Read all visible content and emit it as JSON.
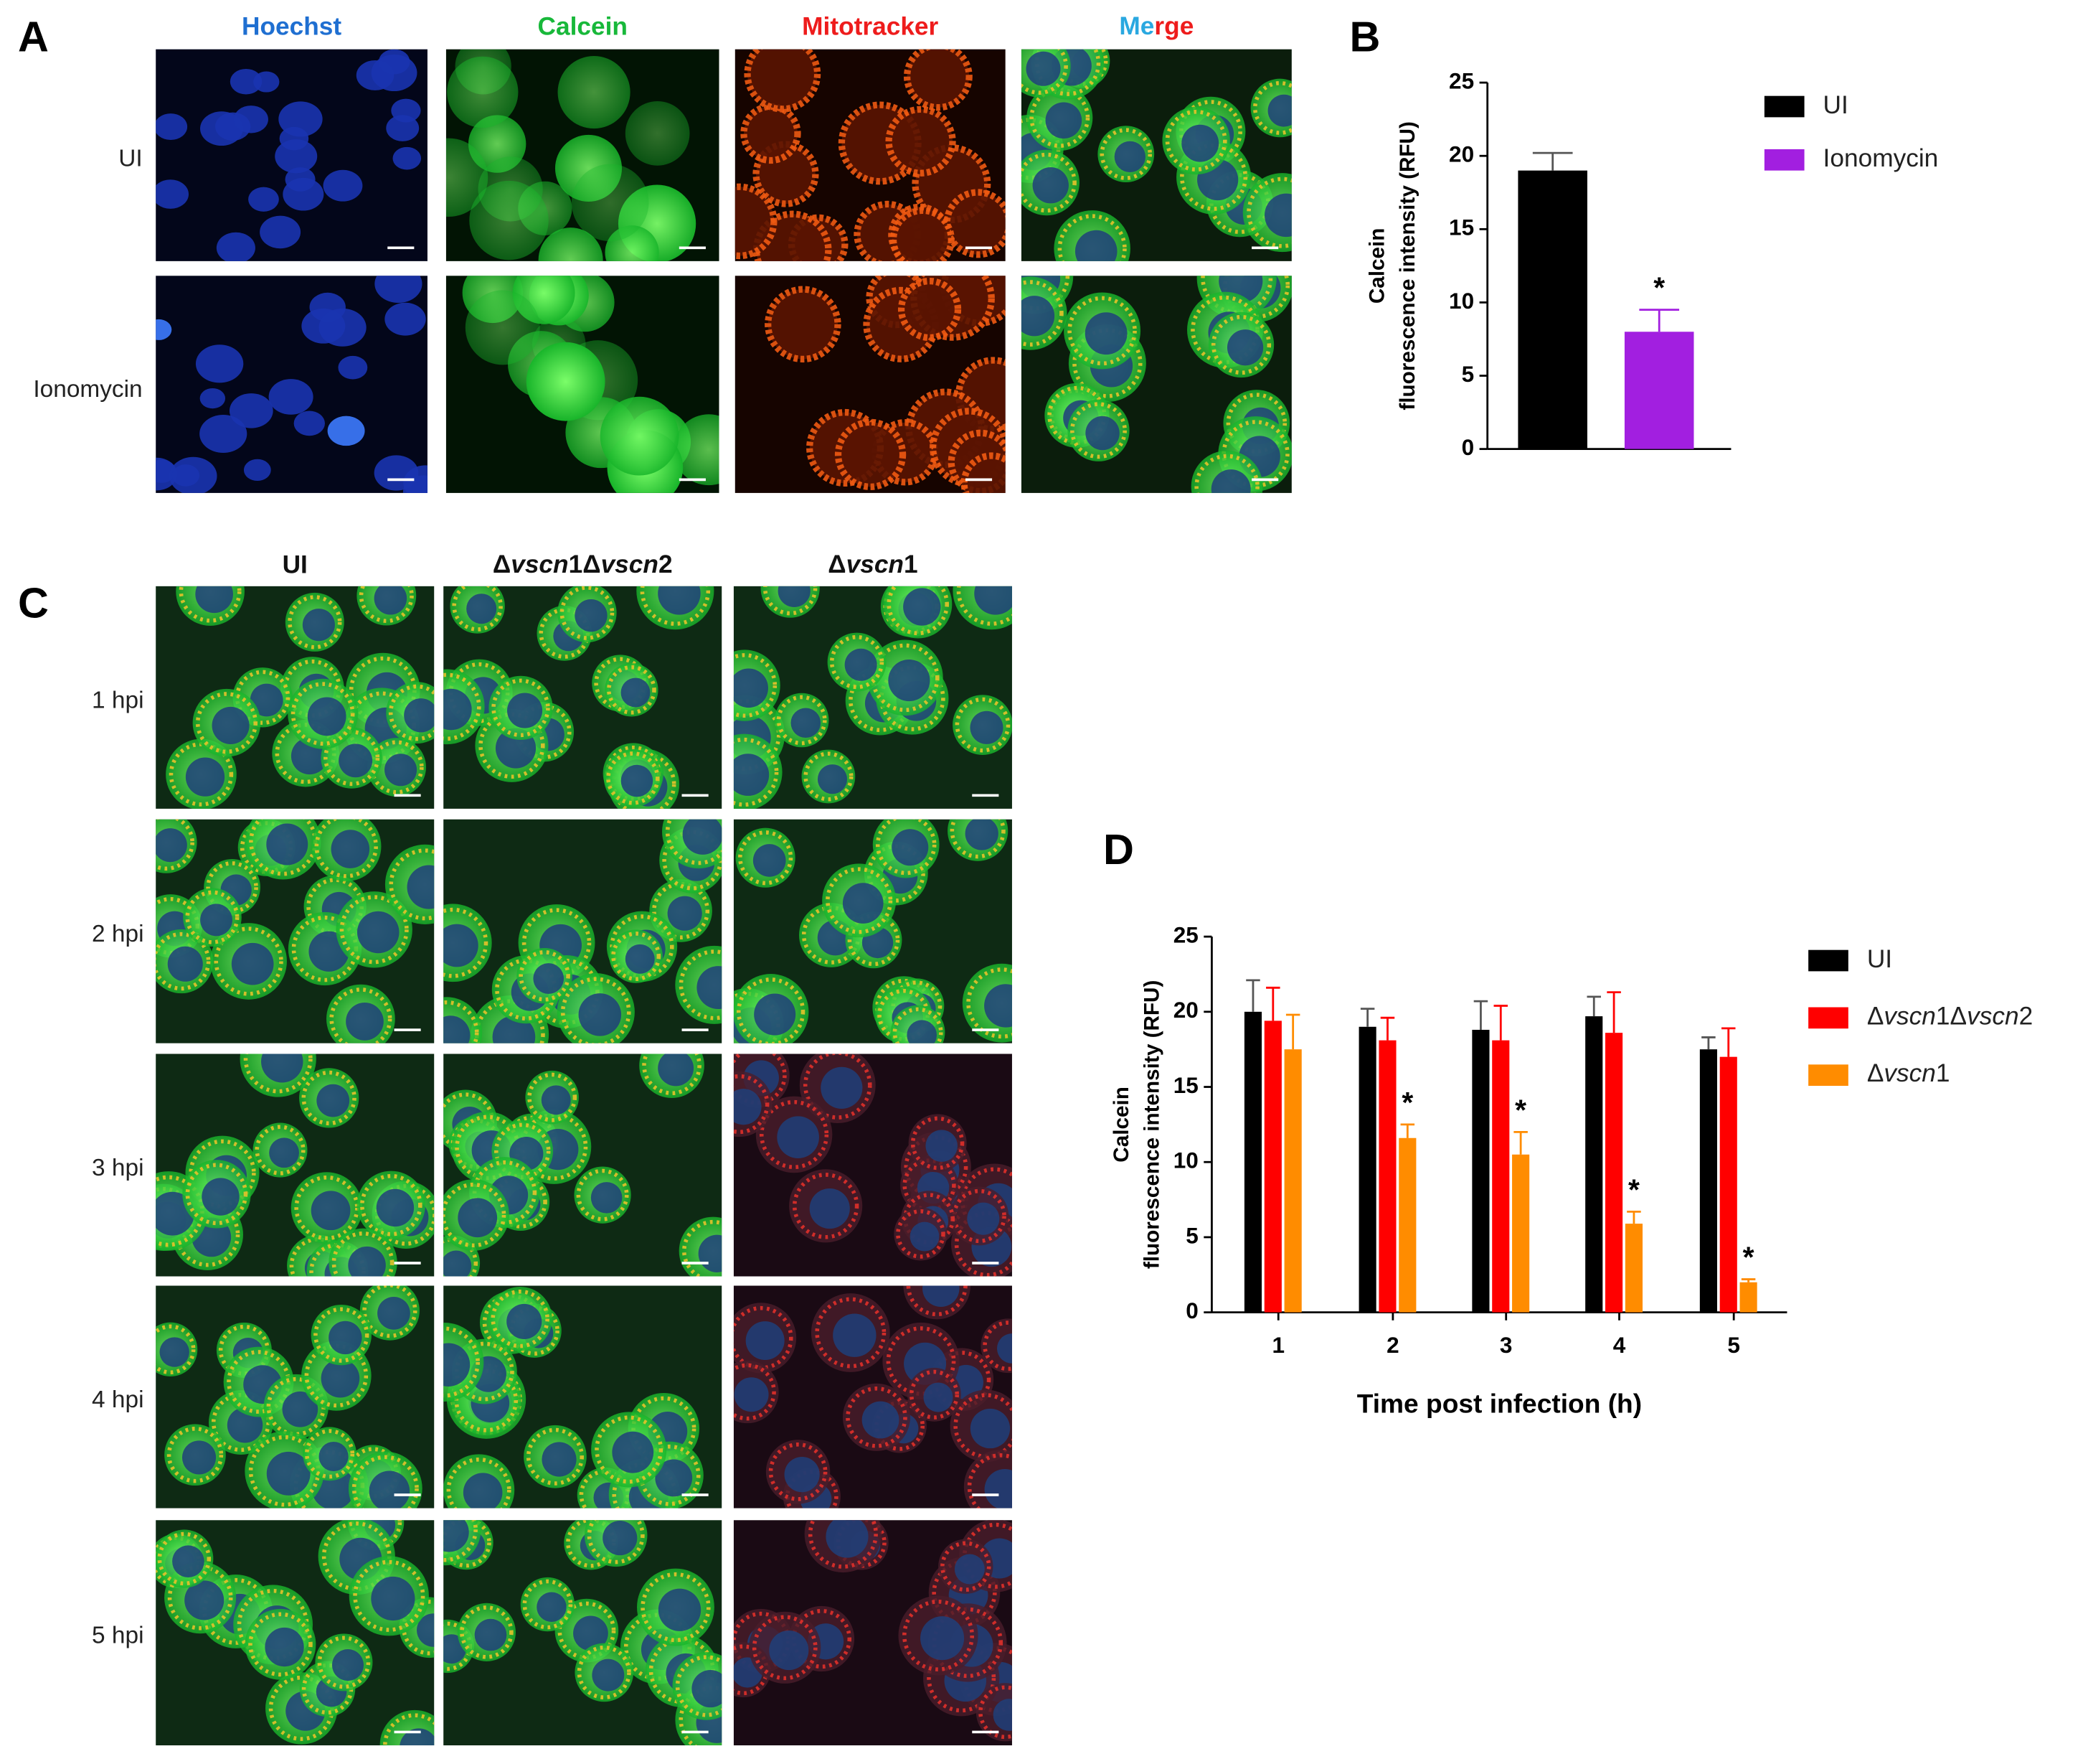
{
  "figure": {
    "panel_labels": [
      "A",
      "B",
      "C",
      "D"
    ],
    "panel_a": {
      "columns": [
        "Hoechst",
        "Calcein",
        "Mitotracker",
        "Merge"
      ],
      "rows": [
        "UI",
        "Ionomycin"
      ]
    },
    "panel_c": {
      "columns": [
        "UI",
        "Δvscn1Δvscn2",
        "Δvscn1"
      ],
      "rows": [
        "1 hpi",
        "2 hpi",
        "3 hpi",
        "4 hpi",
        "5 hpi"
      ]
    }
  },
  "chart_data": [
    {
      "type": "bar",
      "ylabel": [
        "Calcein",
        "fluorescence intensity (RFU)"
      ],
      "categories": [
        null
      ],
      "series": [
        {
          "name": "UI",
          "color": "#000000",
          "values": [
            19
          ],
          "errors": [
            1.2
          ],
          "significance": [
            null
          ]
        },
        {
          "name": "Ionomycin",
          "color": "#a21fe0",
          "values": [
            8
          ],
          "errors": [
            1.5
          ],
          "significance": [
            "*"
          ]
        }
      ],
      "ylim": [
        0,
        25
      ],
      "yticks": [
        0,
        5,
        10,
        15,
        20,
        25
      ],
      "legend": "right"
    },
    {
      "type": "bar",
      "xlabel": "Time post infection (h)",
      "ylabel": [
        "Calcein",
        "fluorescence intensity  (RFU)"
      ],
      "categories": [
        "1",
        "2",
        "3",
        "4",
        "5"
      ],
      "series": [
        {
          "name": "UI",
          "color": "#000000",
          "values": [
            20,
            19,
            18.8,
            19.7,
            17.5
          ],
          "errors": [
            2.1,
            1.2,
            1.9,
            1.3,
            0.8
          ],
          "significance": [
            null,
            null,
            null,
            null,
            null
          ]
        },
        {
          "name": "Δvscn1Δvscn2",
          "color": "#ff0000",
          "values": [
            19.4,
            18.1,
            18.1,
            18.6,
            17
          ],
          "errors": [
            2.2,
            1.5,
            2.3,
            2.7,
            1.9
          ],
          "significance": [
            null,
            null,
            null,
            null,
            null
          ]
        },
        {
          "name": "Δvscn1",
          "color": "#ff8c00",
          "values": [
            17.5,
            11.6,
            10.5,
            5.9,
            2
          ],
          "errors": [
            2.3,
            0.9,
            1.5,
            0.8,
            0.2
          ],
          "significance": [
            null,
            "*",
            "*",
            "*",
            "*"
          ]
        }
      ],
      "ylim": [
        0,
        25
      ],
      "yticks": [
        0,
        5,
        10,
        15,
        20,
        25
      ],
      "legend": "right"
    }
  ]
}
